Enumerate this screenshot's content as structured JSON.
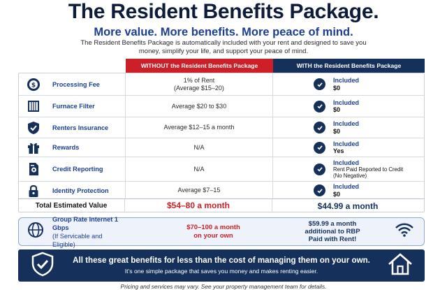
{
  "header": {
    "title": "The Resident Benefits Package.",
    "subtitle": "More value. More benefits. More peace of mind.",
    "intro": "The Resident Benefits Package is automatically included with your rent and designed to save you money, simplify your life, and support your peace of mind."
  },
  "columns": {
    "without": "WITHOUT the Resident Benefits Package",
    "with": "WITH the Resident Benefits Package"
  },
  "rows": [
    {
      "feature": "Processing Fee",
      "icon": "dollar-gear-icon",
      "without": "1% of Rent\n(Average $15–20)",
      "with_status": "Included",
      "with_value": "$0"
    },
    {
      "feature": "Furnace Filter",
      "icon": "filter-icon",
      "without": "Average $20 to $30",
      "with_status": "Included",
      "with_value": "$0"
    },
    {
      "feature": "Renters Insurance",
      "icon": "shield-check-icon",
      "without": "Average $12–15 a month",
      "with_status": "Included",
      "with_value": "$0"
    },
    {
      "feature": "Rewards",
      "icon": "gift-icon",
      "without": "N/A",
      "with_status": "Included",
      "with_value": "Yes"
    },
    {
      "feature": "Credit Reporting",
      "icon": "credit-report-icon",
      "without": "N/A",
      "with_status": "Included",
      "with_value": "Rent Paid Reported to Credit\n(No Negative)"
    },
    {
      "feature": "Identity Protection",
      "icon": "lock-icon",
      "without": "Average $7–15",
      "with_status": "Included",
      "with_value": "$0"
    }
  ],
  "total": {
    "label": "Total Estimated Value",
    "without": "$54–80 a month",
    "with": "$44.99 a month"
  },
  "internet": {
    "label_bold": "Group Rate Internet 1 Gbps",
    "label_sub": "(If Servicable and Eligible)",
    "without_line1": "$70–100 a month",
    "without_line2": "on your own",
    "with_line1": "$59.99 a month",
    "with_line2": "additional to RBP",
    "with_line3": "Paid with Rent!"
  },
  "banner": {
    "headline": "All these great benefits for less than the cost of managing them on your own.",
    "sub": "It’s one simple package that saves you money and makes renting easier."
  },
  "footer": "Pricing and services may vary. See your property management team for details.",
  "colors": {
    "navy": "#16305c",
    "red": "#cc1f27",
    "blue": "#1c3f94"
  }
}
